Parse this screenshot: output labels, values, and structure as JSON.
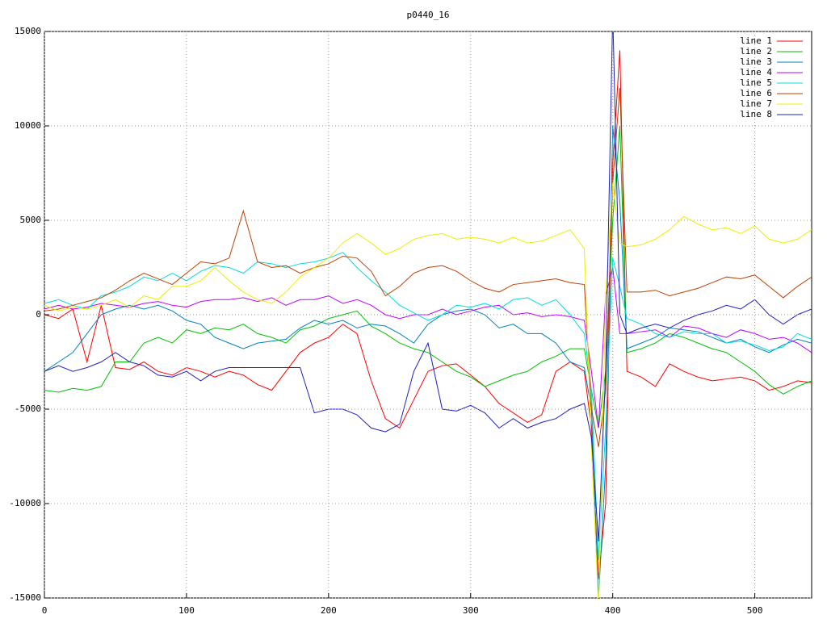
{
  "chart_data": {
    "type": "line",
    "title": "p0440_16",
    "x": [
      0,
      10,
      20,
      30,
      40,
      50,
      60,
      70,
      80,
      90,
      100,
      110,
      120,
      130,
      140,
      150,
      160,
      170,
      180,
      190,
      200,
      210,
      220,
      230,
      240,
      250,
      260,
      270,
      280,
      290,
      300,
      310,
      320,
      330,
      340,
      350,
      360,
      370,
      380,
      385,
      390,
      395,
      400,
      405,
      410,
      420,
      430,
      440,
      450,
      460,
      470,
      480,
      490,
      500,
      510,
      520,
      530,
      540
    ],
    "xlim": [
      0,
      540
    ],
    "xticks": [
      0,
      100,
      200,
      300,
      400,
      500
    ],
    "ylim": [
      -15000,
      15000
    ],
    "yticks": [
      -15000,
      -10000,
      -5000,
      0,
      5000,
      10000,
      15000
    ],
    "grid": true,
    "legend": "top-right",
    "series": [
      {
        "name": "line 1",
        "color": "#ff0000",
        "values": [
          0,
          -200,
          300,
          -2500,
          500,
          -2800,
          -2900,
          -2500,
          -3000,
          -3200,
          -2800,
          -3000,
          -3300,
          -3000,
          -3200,
          -3700,
          -4000,
          -3000,
          -2000,
          -1500,
          -1200,
          -500,
          -1000,
          -3500,
          -5500,
          -6000,
          -4500,
          -3000,
          -2700,
          -2600,
          -3200,
          -3800,
          -4700,
          -5200,
          -5700,
          -5300,
          -3000,
          -2500,
          -3000,
          -6000,
          -14000,
          -10000,
          8000,
          14000,
          -3000,
          -3300,
          -3800,
          -2600,
          -3000,
          -3300,
          -3500,
          -3400,
          -3300,
          -3500,
          -4000,
          -3800,
          -3500,
          -3600
        ]
      },
      {
        "name": "line 2",
        "color": "#00c000",
        "values": [
          -4000,
          -4100,
          -3900,
          -4000,
          -3800,
          -2500,
          -2500,
          -1500,
          -1200,
          -1500,
          -800,
          -1000,
          -700,
          -800,
          -500,
          -1000,
          -1200,
          -1500,
          -800,
          -600,
          -200,
          0,
          200,
          -600,
          -1000,
          -1500,
          -1800,
          -2000,
          -2500,
          -3000,
          -3300,
          -3800,
          -3500,
          -3200,
          -3000,
          -2500,
          -2200,
          -1800,
          -1800,
          -4000,
          -6000,
          -3000,
          5000,
          10000,
          -2000,
          -1800,
          -1500,
          -1000,
          -1200,
          -1500,
          -1800,
          -2000,
          -2500,
          -3000,
          -3700,
          -4200,
          -3800,
          -3500
        ]
      },
      {
        "name": "line 3",
        "color": "#0080c0",
        "values": [
          -3000,
          -2500,
          -2000,
          -1000,
          0,
          300,
          500,
          300,
          500,
          200,
          -300,
          -500,
          -1200,
          -1500,
          -1800,
          -1500,
          -1400,
          -1300,
          -700,
          -300,
          -500,
          -300,
          -700,
          -500,
          -600,
          -1000,
          -1500,
          -500,
          0,
          200,
          300,
          0,
          -700,
          -500,
          -1000,
          -1000,
          -1500,
          -2500,
          -2800,
          -5000,
          -15000,
          -8000,
          10000,
          6000,
          -1800,
          -1500,
          -1200,
          -700,
          -800,
          -900,
          -1200,
          -1500,
          -1300,
          -1700,
          -2000,
          -1600,
          -1300,
          -1500
        ]
      },
      {
        "name": "line 4",
        "color": "#c000ff",
        "values": [
          300,
          500,
          300,
          400,
          600,
          500,
          400,
          600,
          700,
          500,
          400,
          700,
          800,
          800,
          900,
          700,
          900,
          500,
          800,
          800,
          1000,
          600,
          800,
          500,
          0,
          -200,
          0,
          0,
          300,
          0,
          200,
          400,
          500,
          0,
          100,
          -100,
          0,
          -100,
          -300,
          -3000,
          -6000,
          1000,
          2500,
          -1000,
          -1000,
          -900,
          -800,
          -1200,
          -600,
          -700,
          -1000,
          -1200,
          -800,
          -1000,
          -1300,
          -1200,
          -1500,
          -2000
        ]
      },
      {
        "name": "line 5",
        "color": "#00dddd",
        "values": [
          600,
          800,
          500,
          300,
          1000,
          1200,
          1500,
          2000,
          1800,
          2200,
          1800,
          2300,
          2600,
          2500,
          2200,
          2800,
          2700,
          2500,
          2700,
          2800,
          3000,
          3300,
          2500,
          1800,
          1200,
          500,
          100,
          -300,
          0,
          500,
          400,
          600,
          300,
          800,
          900,
          500,
          800,
          0,
          -1000,
          -4000,
          -13000,
          -6000,
          3000,
          1500,
          -200,
          -500,
          -1000,
          -1200,
          -900,
          -1000,
          -1000,
          -1500,
          -1400,
          -1600,
          -1900,
          -1700,
          -1000,
          -1300
        ]
      },
      {
        "name": "line 6",
        "color": "#c04000",
        "values": [
          200,
          300,
          500,
          700,
          900,
          1300,
          1800,
          2200,
          1900,
          1600,
          2200,
          2800,
          2700,
          3000,
          5500,
          2800,
          2500,
          2600,
          2200,
          2500,
          2700,
          3100,
          3000,
          2300,
          1000,
          1500,
          2200,
          2500,
          2600,
          2300,
          1800,
          1400,
          1200,
          1600,
          1700,
          1800,
          1900,
          1700,
          1600,
          -5000,
          -7000,
          -4000,
          7000,
          12000,
          1200,
          1200,
          1300,
          1000,
          1200,
          1400,
          1700,
          2000,
          1900,
          2100,
          1500,
          900,
          1500,
          2000
        ]
      },
      {
        "name": "line 7",
        "color": "#eeee00",
        "values": [
          500,
          200,
          400,
          300,
          500,
          800,
          400,
          1000,
          800,
          1500,
          1500,
          1800,
          2500,
          1800,
          1200,
          800,
          600,
          1200,
          2000,
          2500,
          3000,
          3800,
          4300,
          3800,
          3200,
          3500,
          4000,
          4200,
          4300,
          4000,
          4100,
          4000,
          3800,
          4100,
          3800,
          3900,
          4200,
          4500,
          3500,
          -7000,
          -15500,
          1000,
          7000,
          3800,
          3600,
          3700,
          4000,
          4500,
          5200,
          4800,
          4500,
          4600,
          4300,
          4700,
          4000,
          3800,
          4000,
          4500
        ]
      },
      {
        "name": "line 8",
        "color": "#2020c0",
        "values": [
          -3000,
          -2700,
          -3000,
          -2800,
          -2500,
          -2000,
          -2500,
          -2700,
          -3200,
          -3300,
          -3000,
          -3500,
          -3000,
          -2800,
          -2800,
          -2800,
          -2800,
          -2800,
          -2800,
          -5200,
          -5000,
          -5000,
          -5300,
          -6000,
          -6200,
          -5800,
          -3000,
          -1500,
          -5000,
          -5100,
          -4800,
          -5200,
          -6000,
          -5500,
          -6000,
          -5700,
          -5500,
          -5000,
          -4700,
          -6500,
          -12000,
          -3000,
          16000,
          0,
          -1000,
          -700,
          -500,
          -700,
          -300,
          0,
          200,
          500,
          300,
          800,
          0,
          -500,
          0,
          300
        ]
      }
    ]
  }
}
